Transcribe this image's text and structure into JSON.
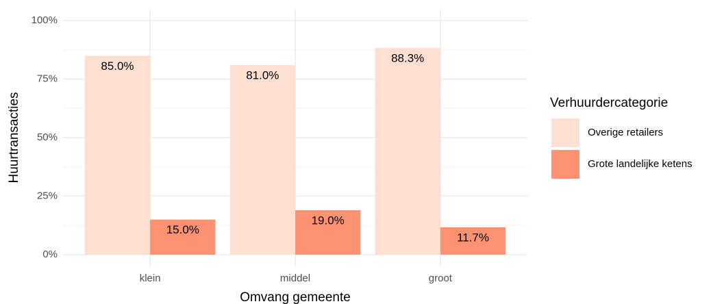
{
  "chart_data": {
    "type": "bar",
    "x_label": "Omvang gemeente",
    "y_label": "Huurtransacties",
    "categories": [
      "klein",
      "middel",
      "groot"
    ],
    "series": [
      {
        "name": "Overige retailers",
        "color": "#fde0d2",
        "values": [
          85.0,
          81.0,
          88.3
        ],
        "value_labels": [
          "85.0%",
          "81.0%",
          "88.3%"
        ]
      },
      {
        "name": "Grote landelijke ketens",
        "color": "#fc9272",
        "values": [
          15.0,
          19.0,
          11.7
        ],
        "value_labels": [
          "15.0%",
          "19.0%",
          "11.7%"
        ]
      }
    ],
    "ylim": [
      -5,
      105
    ],
    "yticks": [
      {
        "value": 0,
        "label": "0%"
      },
      {
        "value": 25,
        "label": "25%"
      },
      {
        "value": 50,
        "label": "50%"
      },
      {
        "value": 75,
        "label": "75%"
      },
      {
        "value": 100,
        "label": "100%"
      }
    ],
    "yminor": [
      12.5,
      37.5,
      62.5,
      87.5
    ],
    "grid": true,
    "legend_title": "Verhuurdercategorie",
    "legend_position": "right"
  }
}
